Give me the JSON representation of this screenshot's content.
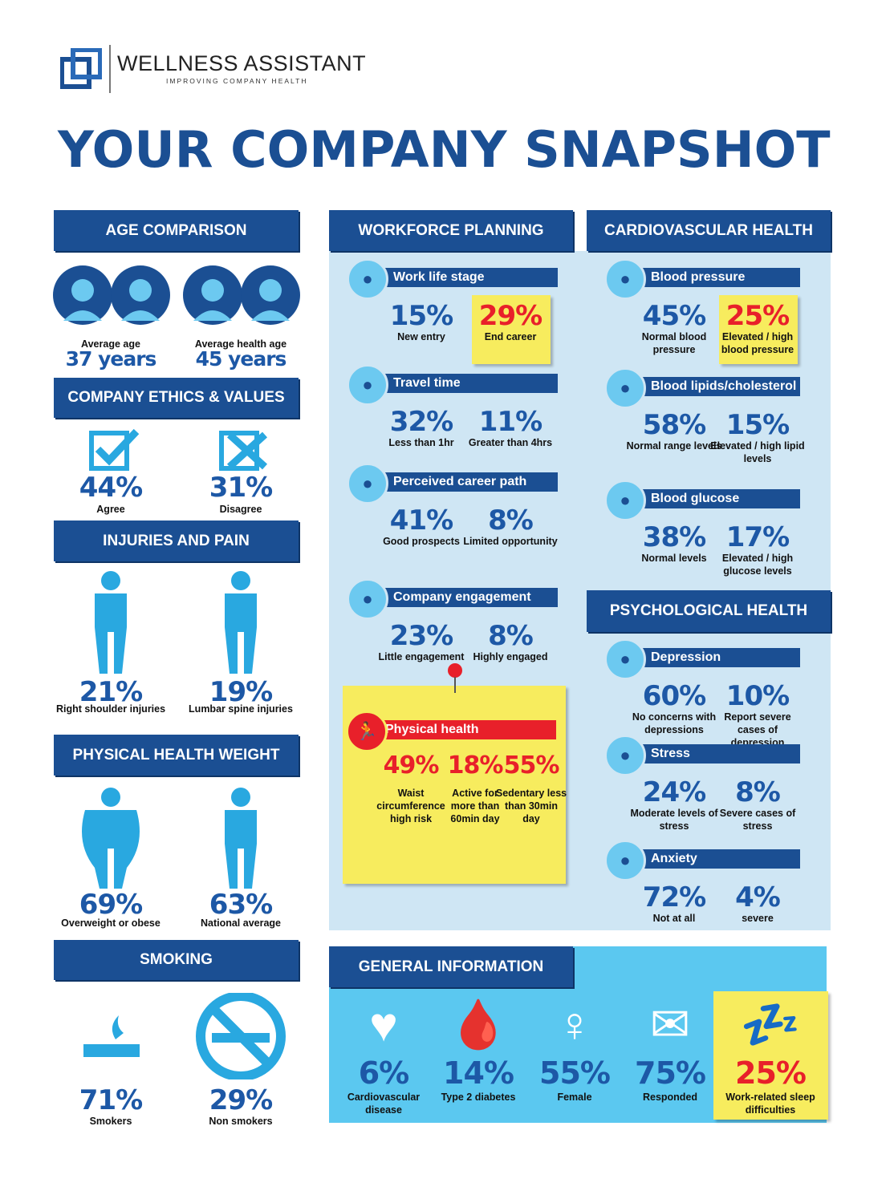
{
  "header": {
    "brand": "WELLNESS ASSISTANT",
    "tagline": "IMPROVING COMPANY HEALTH",
    "title": "YOUR COMPANY SNAPSHOT"
  },
  "colors": {
    "navy": "#1b4f93",
    "text_blue": "#1d58a6",
    "icon_blue": "#29a8e0",
    "panel": "#cfe6f4",
    "general_panel": "#5bc8f0",
    "note_yellow": "#f7ec5e",
    "alert_red": "#e8202a"
  },
  "left": {
    "age": {
      "title": "AGE COMPARISON",
      "items": [
        {
          "label": "Average age",
          "value": "37 years"
        },
        {
          "label": "Average health age",
          "value": "45 years"
        }
      ]
    },
    "ethics": {
      "title": "COMPANY ETHICS & VALUES",
      "items": [
        {
          "value": "44%",
          "label": "Agree",
          "icon": "checkbox-check-icon"
        },
        {
          "value": "31%",
          "label": "Disagree",
          "icon": "checkbox-x-icon"
        }
      ]
    },
    "injuries": {
      "title": "INJURIES AND PAIN",
      "items": [
        {
          "value": "21%",
          "label": "Right shoulder injuries"
        },
        {
          "value": "19%",
          "label": "Lumbar spine injuries"
        }
      ]
    },
    "weight": {
      "title": "PHYSICAL HEALTH WEIGHT",
      "items": [
        {
          "value": "69%",
          "label": "Overweight or obese"
        },
        {
          "value": "63%",
          "label": "National average"
        }
      ]
    },
    "smoking": {
      "title": "SMOKING",
      "items": [
        {
          "value": "71%",
          "label": "Smokers"
        },
        {
          "value": "29%",
          "label": "Non smokers"
        }
      ]
    }
  },
  "workforce": {
    "title": "WORKFORCE PLANNING",
    "groups": [
      {
        "title": "Work life stage",
        "icon": "briefcase-icon",
        "stats": [
          {
            "value": "15%",
            "label": "New entry"
          },
          {
            "value": "29%",
            "label": "End career",
            "highlight": true
          }
        ]
      },
      {
        "title": "Travel time",
        "icon": "airplane-icon",
        "stats": [
          {
            "value": "32%",
            "label": "Less than 1hr"
          },
          {
            "value": "11%",
            "label": "Greater than 4hrs"
          }
        ]
      },
      {
        "title": "Perceived career path",
        "icon": "growth-chart-icon",
        "stats": [
          {
            "value": "41%",
            "label": "Good prospects"
          },
          {
            "value": "8%",
            "label": "Limited opportunity"
          }
        ]
      },
      {
        "title": "Company engagement",
        "icon": "people-group-icon",
        "stats": [
          {
            "value": "23%",
            "label": "Little engagement"
          },
          {
            "value": "8%",
            "label": "Highly engaged"
          }
        ]
      }
    ],
    "physical": {
      "title": "Physical health",
      "icon": "running-person-icon",
      "stats": [
        {
          "value": "49%",
          "label": "Waist circumference high risk"
        },
        {
          "value": "18%",
          "label": "Active for more than 60min day"
        },
        {
          "value": "55%",
          "label": "Sedentary less than 30min day"
        }
      ]
    }
  },
  "cardio": {
    "title": "CARDIOVASCULAR HEALTH",
    "groups": [
      {
        "title": "Blood pressure",
        "icon": "blood-pressure-icon",
        "stats": [
          {
            "value": "45%",
            "label": "Normal blood pressure"
          },
          {
            "value": "25%",
            "label": "Elevated / high blood pressure",
            "highlight": true
          }
        ]
      },
      {
        "title": "Blood lipids/cholesterol",
        "icon": "cholesterol-icon",
        "stats": [
          {
            "value": "58%",
            "label": "Normal range levels"
          },
          {
            "value": "15%",
            "label": "Elevated / high lipid levels"
          }
        ]
      },
      {
        "title": "Blood glucose",
        "icon": "blood-drop-icon",
        "stats": [
          {
            "value": "38%",
            "label": "Normal levels"
          },
          {
            "value": "17%",
            "label": "Elevated / high glucose levels"
          }
        ]
      }
    ]
  },
  "psych": {
    "title": "PSYCHOLOGICAL HEALTH",
    "groups": [
      {
        "title": "Depression",
        "icon": "sad-face-icon",
        "stats": [
          {
            "value": "60%",
            "label": "No concerns with depressions"
          },
          {
            "value": "10%",
            "label": "Report severe cases of depression"
          }
        ]
      },
      {
        "title": "Stress",
        "icon": "stressed-face-icon",
        "stats": [
          {
            "value": "24%",
            "label": "Moderate levels of stress"
          },
          {
            "value": "8%",
            "label": "Severe cases of stress"
          }
        ]
      },
      {
        "title": "Anxiety",
        "icon": "anxious-face-icon",
        "stats": [
          {
            "value": "72%",
            "label": "Not at all"
          },
          {
            "value": "4%",
            "label": "severe"
          }
        ]
      }
    ]
  },
  "general": {
    "title": "GENERAL INFORMATION",
    "items": [
      {
        "value": "6%",
        "label": "Cardiovascular disease",
        "icon": "heart-pulse-icon"
      },
      {
        "value": "14%",
        "label": "Type 2 diabetes",
        "icon": "glucose-meter-icon"
      },
      {
        "value": "55%",
        "label": "Female",
        "icon": "female-symbol-icon"
      },
      {
        "value": "75%",
        "label": "Responded",
        "icon": "envelope-reply-icon"
      },
      {
        "value": "25%",
        "label": "Work-related sleep difficulties",
        "icon": "sleep-zz-icon",
        "highlight": true
      }
    ]
  }
}
